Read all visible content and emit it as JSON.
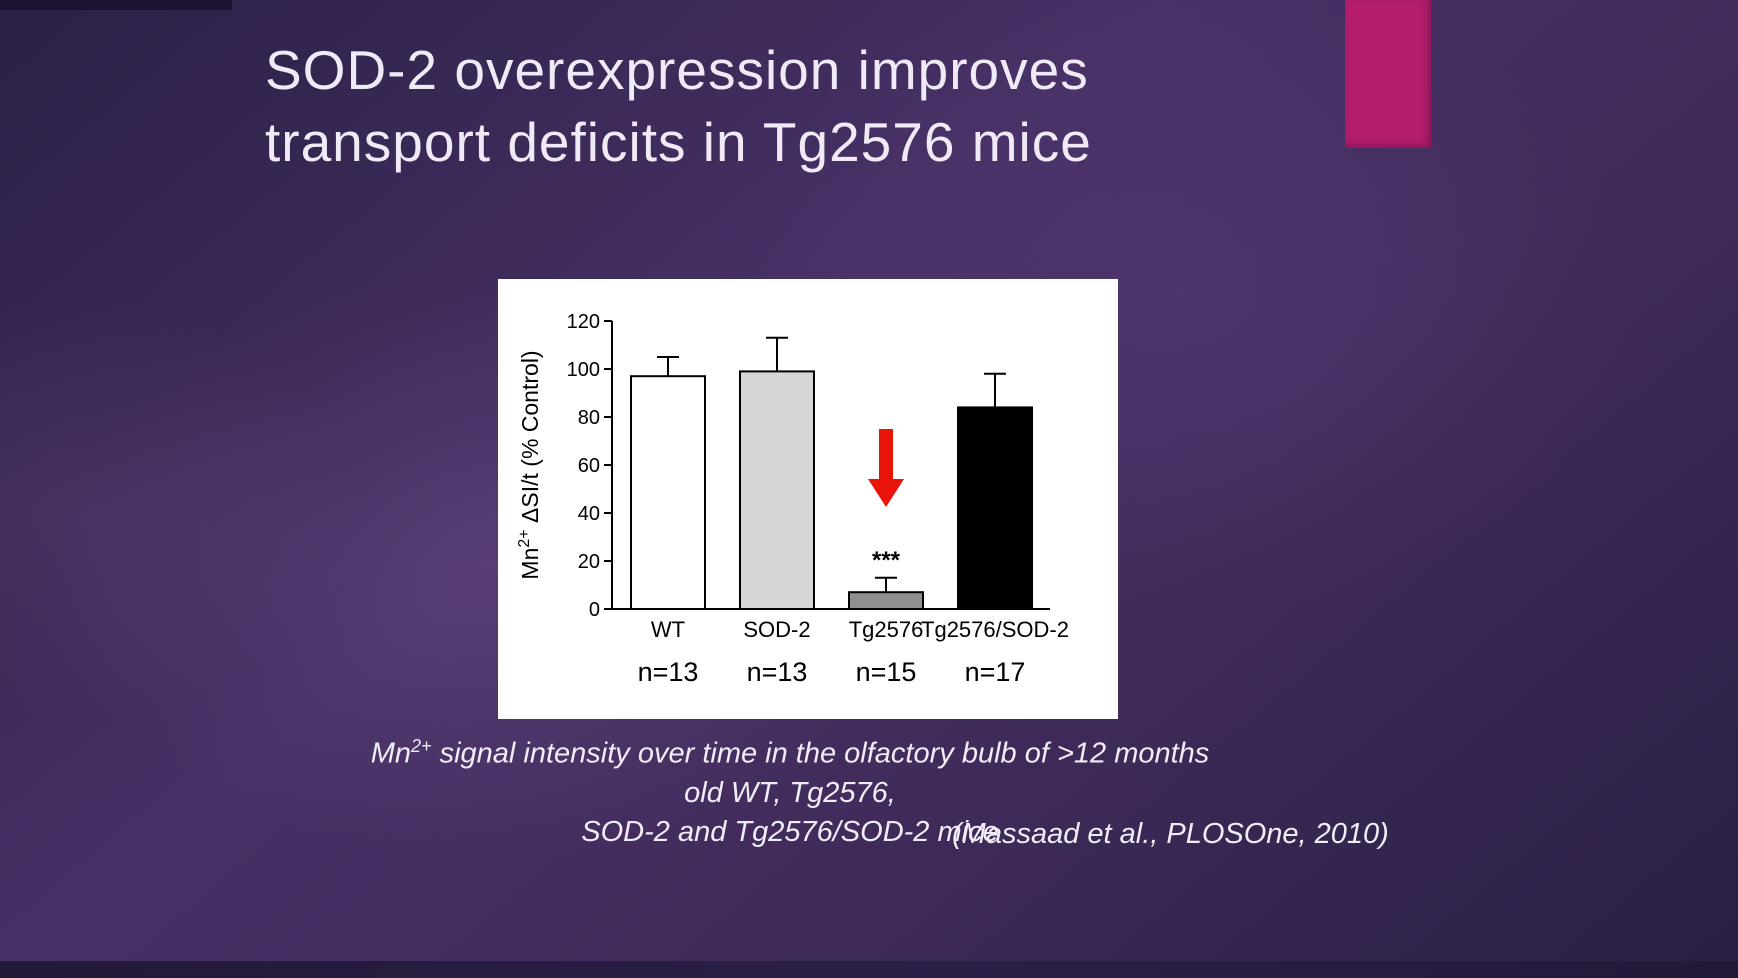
{
  "slide": {
    "title_line1": "SOD-2 overexpression improves",
    "title_line2": "transport deficits in Tg2576 mice",
    "accent_color": "#b41d6e",
    "caption": {
      "line1_prefix": "Mn",
      "line1_sup": "2+",
      "line1_rest": " signal intensity over time in the olfactory bulb of >12 months",
      "line2": "old WT, Tg2576,",
      "line3": "SOD-2 and Tg2576/SOD-2 mice",
      "citation": "(Massaad et al., PLOSOne, 2010)"
    }
  },
  "chart_data": {
    "type": "bar",
    "title": "",
    "ylabel_prefix": "Mn",
    "ylabel_sup": "2+",
    "ylabel_rest": " ΔSI/t (% Control)",
    "ylim": [
      0,
      120
    ],
    "yticks": [
      0,
      20,
      40,
      60,
      80,
      100,
      120
    ],
    "categories": [
      "WT",
      "SOD-2",
      "Tg2576",
      "Tg2576/SOD-2"
    ],
    "values": [
      97,
      99,
      7,
      84
    ],
    "errors": [
      8,
      14,
      6,
      14
    ],
    "n_labels": [
      "n=13",
      "n=13",
      "n=15",
      "n=17"
    ],
    "bar_colors": [
      "#ffffff",
      "#d6d6d6",
      "#8f8f8f",
      "#000000"
    ],
    "axis_color": "#000000",
    "significance": {
      "category": "Tg2576",
      "label": "***"
    },
    "annotations": [
      {
        "type": "arrow",
        "target": "Tg2576",
        "color": "#e81309"
      }
    ],
    "grid": false,
    "legend": null
  }
}
